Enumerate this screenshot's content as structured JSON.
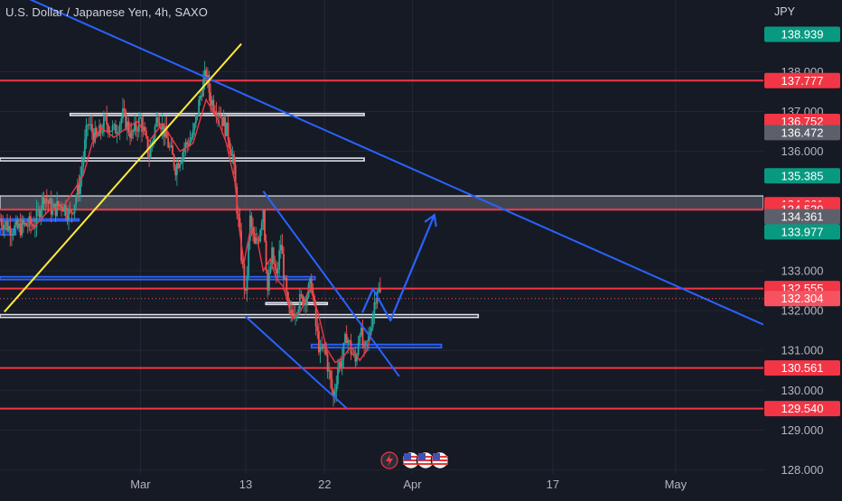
{
  "header": {
    "title": "U.S. Dollar / Japanese Yen, 4h, SAXO",
    "currency": "JPY"
  },
  "colors": {
    "background": "#161a25",
    "grid": "#232734",
    "axis_text": "#b2b5be",
    "resistance_line": "#f23645",
    "trendline": "#2962ff",
    "support_trendline": "#ffeb3b",
    "projection": "#2962ff",
    "zone_outline": "#e0e3eb",
    "candle_up": "#26a69a",
    "candle_down": "#ef5350",
    "moving_average": "#f23645"
  },
  "chart_data": {
    "type": "candlestick",
    "title": "U.S. Dollar / Japanese Yen, 4h, SAXO",
    "ylabel": "JPY",
    "ylim": [
      127.9,
      139.8
    ],
    "x_range_days": [
      -16,
      71
    ],
    "x_ticks": [
      {
        "label": "Mar",
        "day": 0
      },
      {
        "label": "13",
        "day": 12
      },
      {
        "label": "22",
        "day": 21
      },
      {
        "label": "Apr",
        "day": 31
      },
      {
        "label": "17",
        "day": 47
      },
      {
        "label": "May",
        "day": 61
      }
    ],
    "y_ticks": [
      "138.000",
      "137.000",
      "136.000",
      "133.000",
      "132.000",
      "131.000",
      "130.000",
      "129.000",
      "128.000"
    ],
    "grid": true,
    "price_labels": [
      {
        "value": "138.939",
        "price": 138.939,
        "color": "#089981"
      },
      {
        "value": "137.777",
        "price": 137.777,
        "color": "#f23645"
      },
      {
        "value": "136.752",
        "price": 136.752,
        "color": "#f23645"
      },
      {
        "value": "136.472",
        "price": 136.472,
        "color": "#5d606b"
      },
      {
        "value": "135.385",
        "price": 135.385,
        "color": "#089981"
      },
      {
        "value": "134.661",
        "price": 134.661,
        "color": "#f23645"
      },
      {
        "value": "134.539",
        "price": 134.539,
        "color": "#f23645"
      },
      {
        "value": "134.361",
        "price": 134.361,
        "color": "#5d606b"
      },
      {
        "value": "133.977",
        "price": 133.977,
        "color": "#089981"
      },
      {
        "value": "132.555",
        "price": 132.555,
        "color": "#f23645"
      },
      {
        "value": "132.304",
        "price": 132.304,
        "color": "#f7525f"
      },
      {
        "value": "130.561",
        "price": 130.561,
        "color": "#f23645"
      },
      {
        "value": "129.540",
        "price": 129.54,
        "color": "#f23645"
      }
    ],
    "horizontal_levels": [
      137.777,
      134.539,
      132.555,
      130.561,
      129.54
    ],
    "current_price": 132.304,
    "zones": [
      {
        "top": 136.95,
        "bottom": 136.9,
        "start_day": -8,
        "end_day": 25.5,
        "style": "white"
      },
      {
        "top": 135.83,
        "bottom": 135.76,
        "start_day": -16,
        "end_day": 25.5,
        "style": "white"
      },
      {
        "top": 134.88,
        "bottom": 134.53,
        "start_day": -16,
        "end_day": 71,
        "style": "grey"
      },
      {
        "top": 134.3,
        "bottom": 134.26,
        "start_day": -16,
        "end_day": -7,
        "style": "blue"
      },
      {
        "top": 134.05,
        "bottom": 133.9,
        "start_day": -16,
        "end_day": -14.2,
        "style": "blue-fill"
      },
      {
        "top": 132.85,
        "bottom": 132.78,
        "start_day": -16,
        "end_day": 19.9,
        "style": "blue"
      },
      {
        "top": 132.2,
        "bottom": 132.18,
        "start_day": 14.3,
        "end_day": 21.3,
        "style": "white"
      },
      {
        "top": 131.9,
        "bottom": 131.83,
        "start_day": -16,
        "end_day": 38.5,
        "style": "white"
      },
      {
        "top": 131.15,
        "bottom": 131.07,
        "start_day": 19.5,
        "end_day": 34.3,
        "style": "blue"
      }
    ],
    "trendlines": [
      {
        "name": "major-downtrend",
        "points": [
          [
            -16,
            140.15
          ],
          [
            71,
            131.65
          ]
        ],
        "color": "#2962ff"
      },
      {
        "name": "rising-support",
        "points": [
          [
            -15.5,
            131.97
          ],
          [
            11.5,
            138.7
          ]
        ],
        "color": "#ffeb3b"
      },
      {
        "name": "channel-upper",
        "points": [
          [
            14,
            135.0
          ],
          [
            29.5,
            130.35
          ]
        ],
        "color": "#2962ff"
      },
      {
        "name": "channel-lower",
        "points": [
          [
            12,
            131.85
          ],
          [
            23.5,
            129.55
          ]
        ],
        "color": "#2962ff"
      }
    ],
    "projection_path": [
      [
        25.3,
        131.95
      ],
      [
        26.5,
        132.55
      ],
      [
        28.5,
        131.75
      ],
      [
        33.5,
        134.4
      ]
    ],
    "ma_points": [
      [
        -12.5,
        134.0
      ],
      [
        -10.5,
        134.5
      ],
      [
        -8.5,
        134.7
      ],
      [
        -6.5,
        135.4
      ],
      [
        -5.5,
        136.2
      ],
      [
        -4.5,
        136.6
      ],
      [
        -3.0,
        136.35
      ],
      [
        -1.5,
        136.6
      ],
      [
        -0.3,
        136.75
      ],
      [
        1.0,
        136.25
      ],
      [
        2.5,
        136.7
      ],
      [
        4.5,
        136.0
      ],
      [
        6.0,
        136.2
      ],
      [
        7.5,
        137.3
      ],
      [
        8.8,
        136.8
      ],
      [
        9.8,
        136.2
      ],
      [
        10.8,
        135.2
      ],
      [
        11.3,
        134.0
      ],
      [
        11.8,
        133.2
      ],
      [
        12.5,
        134.0
      ],
      [
        13.3,
        133.8
      ],
      [
        14.0,
        133.0
      ],
      [
        14.8,
        133.3
      ],
      [
        15.5,
        132.8
      ],
      [
        16.3,
        132.6
      ],
      [
        17.3,
        131.8
      ],
      [
        18.3,
        132.0
      ],
      [
        19.3,
        132.6
      ],
      [
        20.3,
        131.9
      ],
      [
        21.2,
        131.05
      ],
      [
        22.2,
        130.7
      ],
      [
        23.0,
        130.8
      ],
      [
        24.0,
        131.1
      ],
      [
        25.0,
        130.75
      ],
      [
        25.8,
        131.0
      ],
      [
        26.3,
        131.4
      ]
    ],
    "candle_path": [
      [
        -16,
        134.3
      ],
      [
        -15,
        134.1
      ],
      [
        -14,
        134.05
      ],
      [
        -13,
        134.15
      ],
      [
        -12,
        134.2
      ],
      [
        -11,
        134.9
      ],
      [
        -10,
        134.5
      ],
      [
        -9,
        134.7
      ],
      [
        -8,
        134.4
      ],
      [
        -7,
        135.1
      ],
      [
        -6,
        136.7
      ],
      [
        -5,
        136.3
      ],
      [
        -4,
        136.75
      ],
      [
        -3,
        136.5
      ],
      [
        -2,
        136.9
      ],
      [
        -1,
        136.4
      ],
      [
        0,
        136.8
      ],
      [
        1,
        135.9
      ],
      [
        2,
        136.95
      ],
      [
        3,
        136.3
      ],
      [
        4,
        135.6
      ],
      [
        5,
        136.1
      ],
      [
        6,
        136.4
      ],
      [
        7,
        137.6
      ],
      [
        7.5,
        137.95
      ],
      [
        8,
        137.3
      ],
      [
        9,
        137.0
      ],
      [
        10,
        136.4
      ],
      [
        10.5,
        135.9
      ],
      [
        11,
        134.6
      ],
      [
        11.5,
        133.4
      ],
      [
        12,
        132.3
      ],
      [
        12.5,
        134.3
      ],
      [
        13,
        133.6
      ],
      [
        13.5,
        133.9
      ],
      [
        14,
        134.6
      ],
      [
        14.5,
        132.5
      ],
      [
        15,
        133.4
      ],
      [
        15.5,
        132.8
      ],
      [
        16,
        133.7
      ],
      [
        16.5,
        132.6
      ],
      [
        17,
        131.8
      ],
      [
        18,
        132.2
      ],
      [
        19,
        132.4
      ],
      [
        19.5,
        132.7
      ],
      [
        20,
        131.6
      ],
      [
        20.5,
        130.9
      ],
      [
        21,
        131.1
      ],
      [
        21.5,
        130.4
      ],
      [
        22,
        129.8
      ],
      [
        22.5,
        130.6
      ],
      [
        23,
        130.8
      ],
      [
        23.5,
        131.4
      ],
      [
        24,
        131.0
      ],
      [
        24.5,
        130.7
      ],
      [
        25,
        131.6
      ],
      [
        25.5,
        130.9
      ],
      [
        26,
        131.3
      ],
      [
        26.5,
        132.0
      ],
      [
        27,
        132.6
      ],
      [
        27.5,
        132.3
      ]
    ]
  }
}
